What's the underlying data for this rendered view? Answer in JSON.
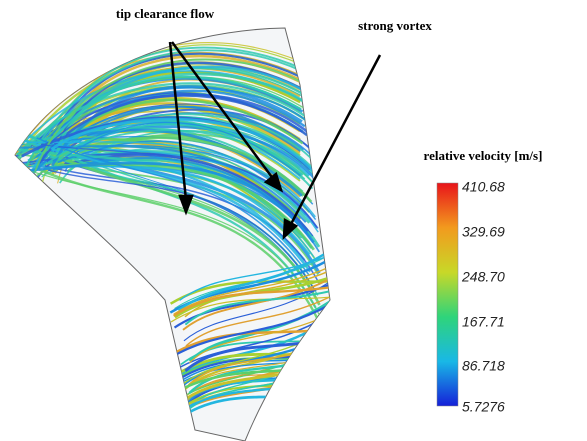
{
  "annotations": [
    {
      "label": "tip clearance flow"
    },
    {
      "label": "strong vortex"
    }
  ],
  "colorbar": {
    "title": "relative velocity [m/s]",
    "labels": [
      "410.68",
      "329.69",
      "248.70",
      "167.71",
      "86.718",
      "5.7276"
    ]
  }
}
